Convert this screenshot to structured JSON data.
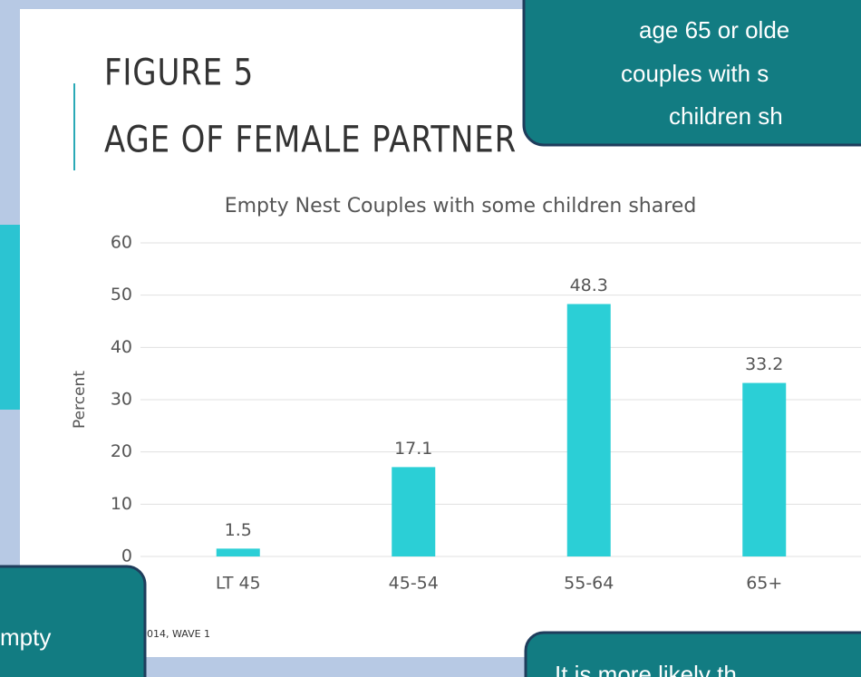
{
  "slide": {
    "title_lines": [
      "FIGURE 5",
      "AGE OF FEMALE PARTNER"
    ],
    "callout_top": [
      "age 65 or olde",
      "couples with s",
      "children sh"
    ],
    "callout_bottom_left": [
      "mpty"
    ],
    "callout_bottom_right": [
      "It is more likely th"
    ],
    "source": "014, WAVE 1"
  },
  "chart_data": {
    "type": "bar",
    "title": "Empty Nest Couples with some children shared",
    "y_label": "Percent",
    "categories": [
      "LT 45",
      "45-54",
      "55-64",
      "65+"
    ],
    "values": [
      1.5,
      17.1,
      48.3,
      33.2
    ],
    "color": "#2bcfd6",
    "ylim": [
      0,
      60
    ],
    "yticks": [
      0,
      10,
      20,
      30,
      40,
      50,
      60
    ],
    "grid": true
  }
}
